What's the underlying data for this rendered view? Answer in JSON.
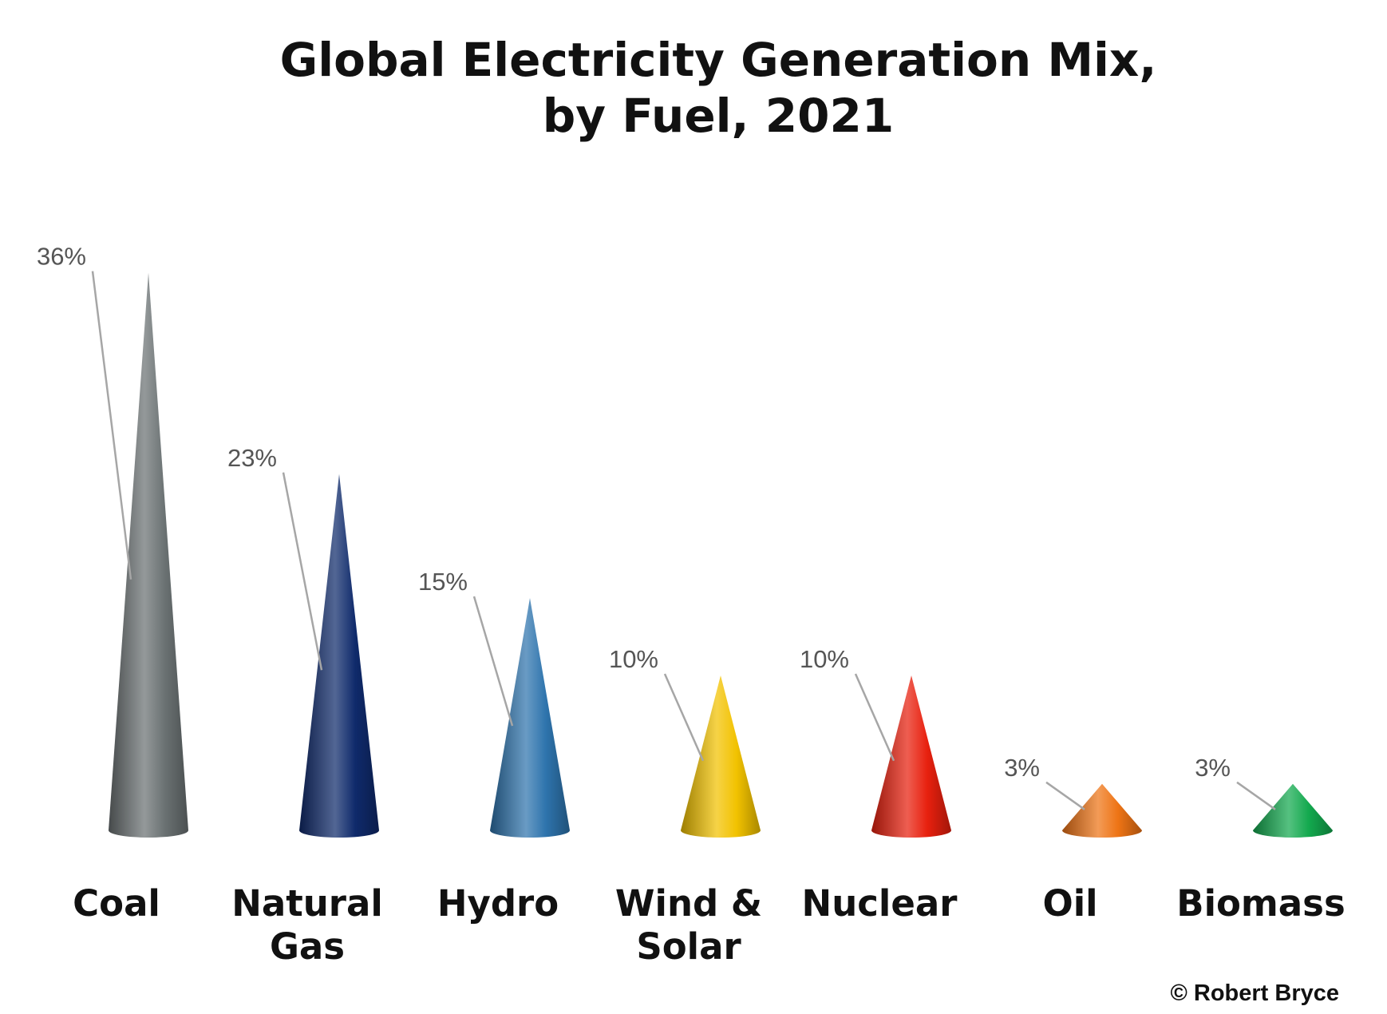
{
  "chart_data": {
    "type": "bar",
    "bar_shape": "cone",
    "title_lines": [
      "Global Electricity Generation Mix,",
      "by Fuel, 2021"
    ],
    "categories": [
      [
        "Coal"
      ],
      [
        "Natural",
        "Gas"
      ],
      [
        "Hydro"
      ],
      [
        "Wind &",
        "Solar"
      ],
      [
        "Nuclear"
      ],
      [
        "Oil"
      ],
      [
        "Biomass"
      ]
    ],
    "values": [
      36,
      23,
      15,
      10,
      10,
      3,
      3
    ],
    "value_unit": "%",
    "data_labels": [
      "36%",
      "23%",
      "15%",
      "10%",
      "10%",
      "3%",
      "3%"
    ],
    "colors": [
      "#6b7273",
      "#0f2a6b",
      "#2e74ad",
      "#f2c200",
      "#e8200e",
      "#ee7415",
      "#13a94e"
    ],
    "ylim": [
      0,
      38
    ],
    "grid": false,
    "legend": "none",
    "xlabel": "",
    "ylabel": ""
  },
  "credit": "© Robert Bryce"
}
